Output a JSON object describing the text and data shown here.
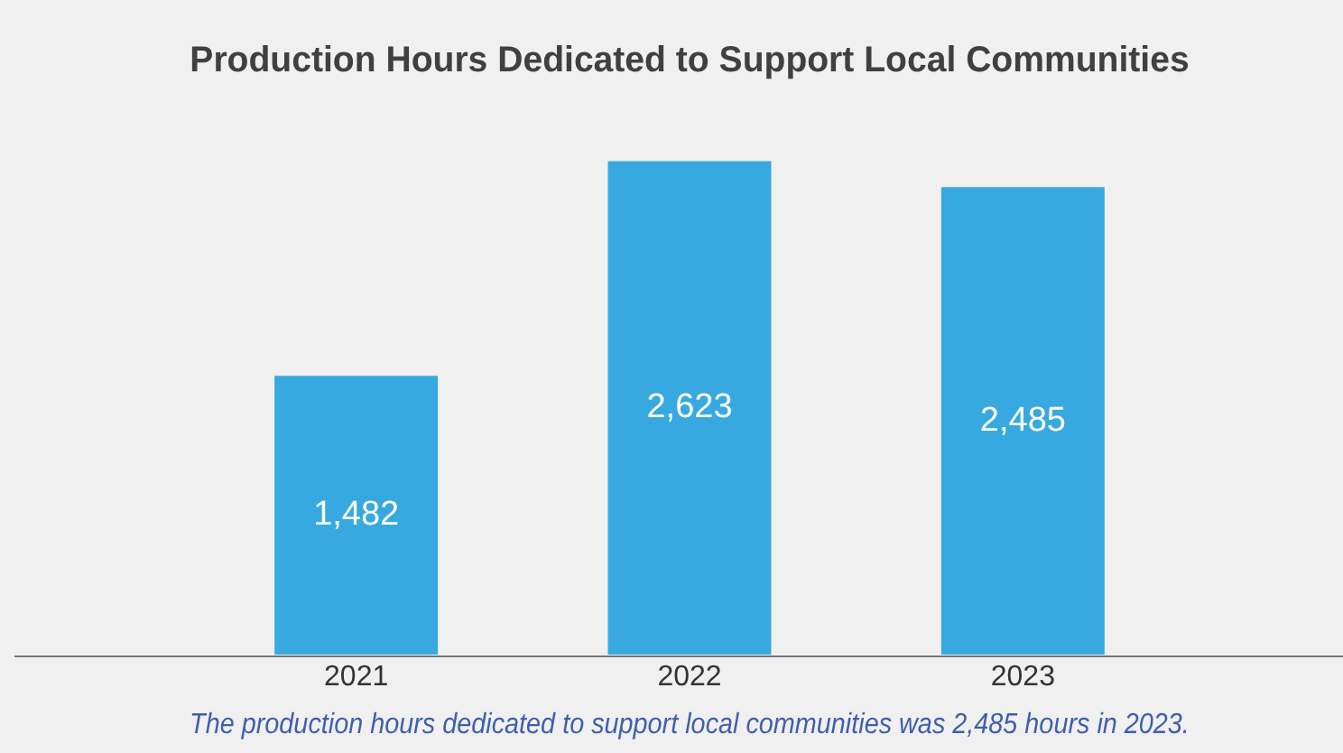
{
  "chart_data": {
    "type": "bar",
    "title": "Production Hours Dedicated to Support Local Communities",
    "categories": [
      "2021",
      "2022",
      "2023"
    ],
    "values": [
      1482,
      2623,
      2485
    ],
    "color": "#38a9e0",
    "value_labels": [
      "1,482",
      "2,623",
      "2,485"
    ],
    "grid": false,
    "legend": false,
    "tick_labels": "x",
    "annotations": [
      "The production hours dedicated to support local communities was 2,485 hours in 2023."
    ]
  }
}
